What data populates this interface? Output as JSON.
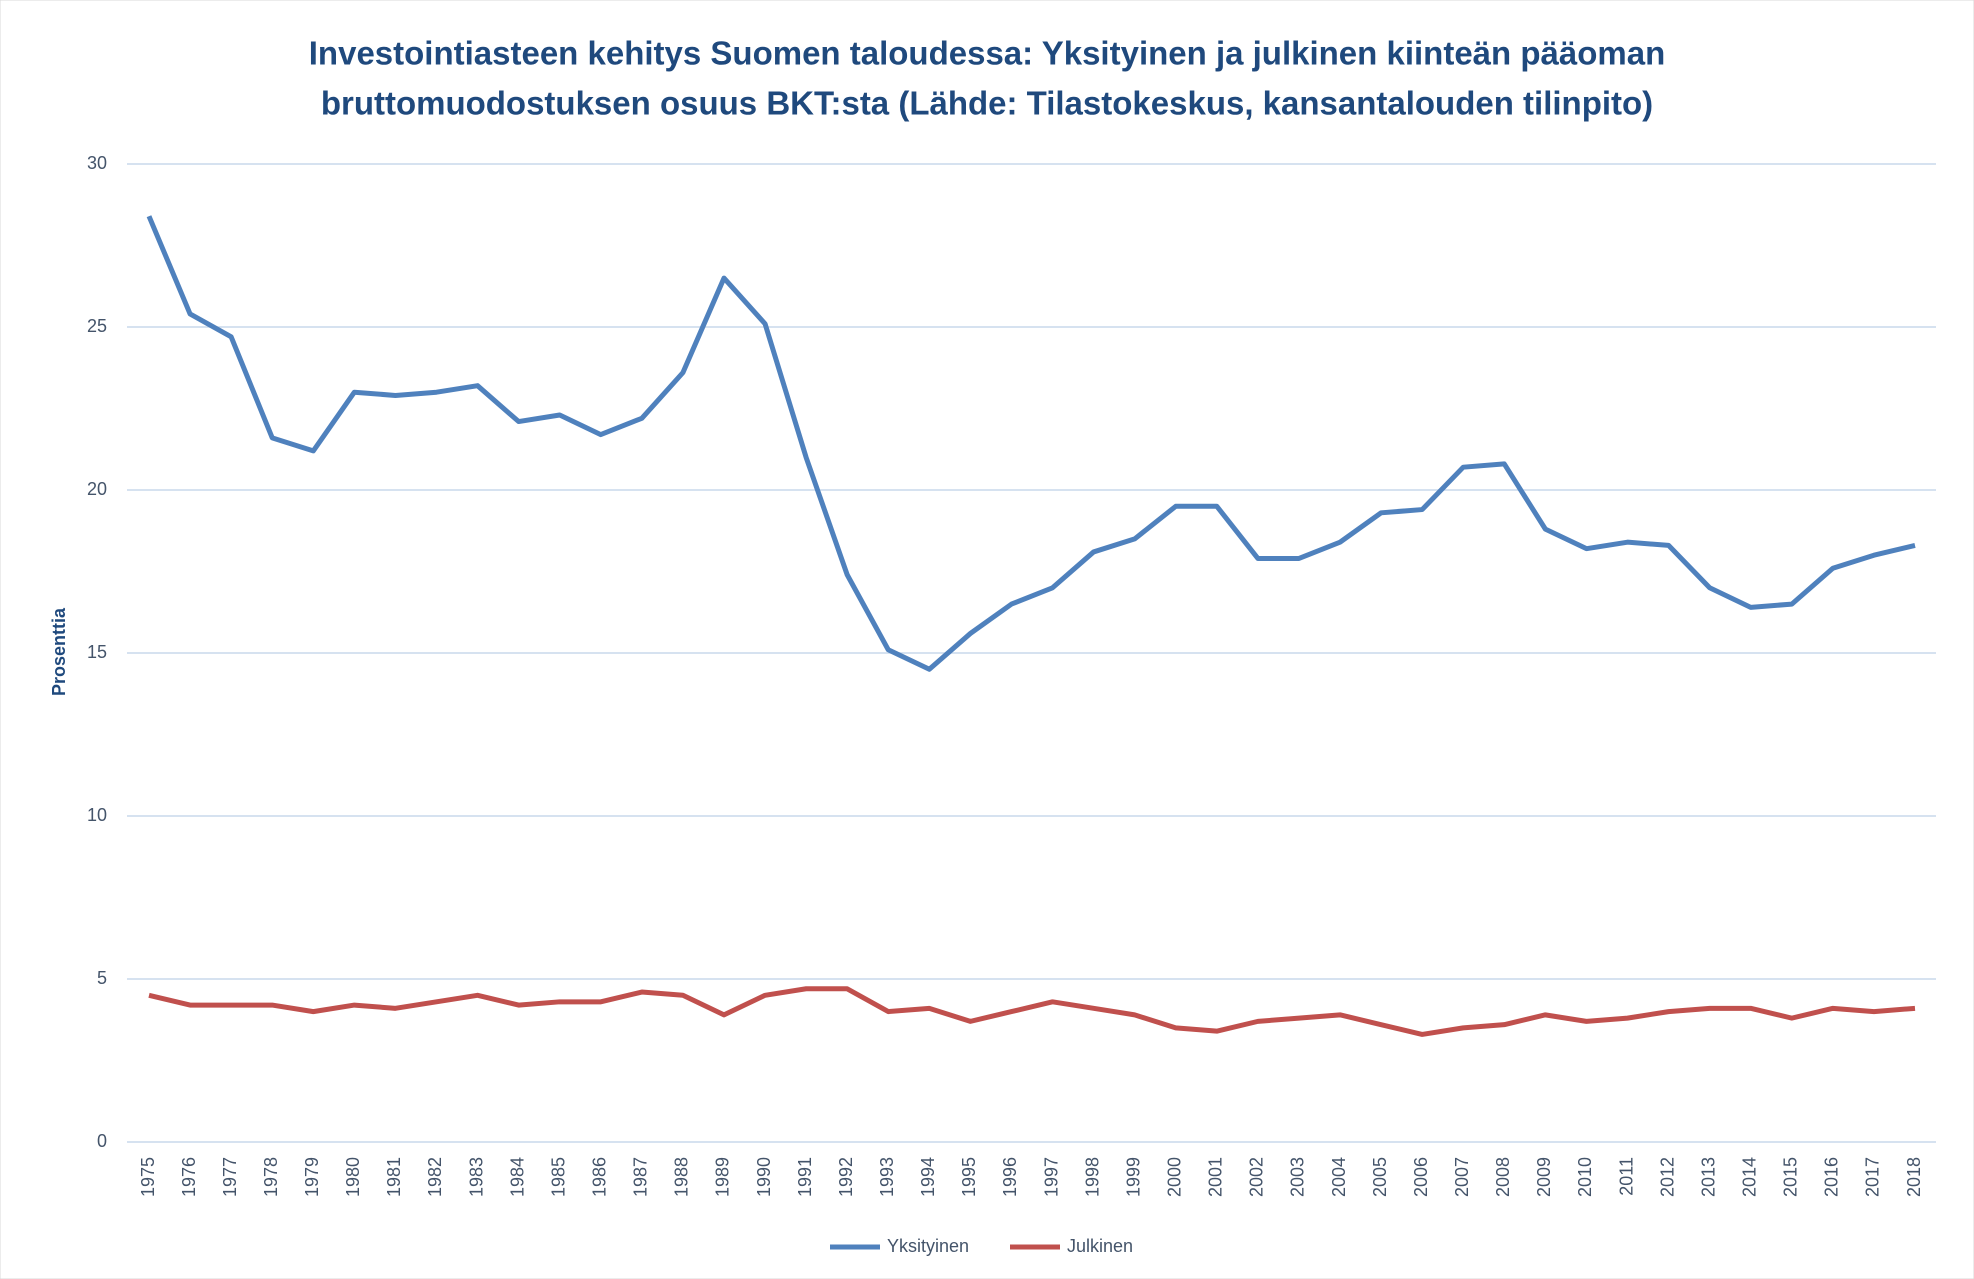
{
  "chart_data": {
    "type": "line",
    "title": [
      "Investointiasteen kehitys Suomen taloudessa: Yksityinen ja julkinen kiinteän pääoman",
      "bruttomuodostuksen osuus BKT:sta (Lähde: Tilastokeskus, kansantalouden tilinpito)"
    ],
    "y_label": "Prosenttia",
    "categories": [
      "1975",
      "1976",
      "1977",
      "1978",
      "1979",
      "1980",
      "1981",
      "1982",
      "1983",
      "1984",
      "1985",
      "1986",
      "1987",
      "1988",
      "1989",
      "1990",
      "1991",
      "1992",
      "1993",
      "1994",
      "1995",
      "1996",
      "1997",
      "1998",
      "1999",
      "2000",
      "2001",
      "2002",
      "2003",
      "2004",
      "2005",
      "2006",
      "2007",
      "2008",
      "2009",
      "2010",
      "2011",
      "2012",
      "2013",
      "2014",
      "2015",
      "2016",
      "2017",
      "2018"
    ],
    "series": [
      {
        "name": "Yksityinen",
        "color": "#4f81bd",
        "values": [
          28.4,
          25.4,
          24.7,
          21.6,
          21.2,
          23.0,
          22.9,
          23.0,
          23.2,
          22.1,
          22.3,
          21.7,
          22.2,
          23.6,
          26.5,
          25.1,
          21.0,
          17.4,
          15.1,
          14.5,
          15.6,
          16.5,
          17.0,
          18.1,
          18.5,
          19.5,
          19.5,
          17.9,
          17.9,
          18.4,
          19.3,
          19.4,
          20.7,
          20.8,
          18.8,
          18.2,
          18.4,
          18.3,
          17.0,
          16.4,
          16.5,
          17.6,
          18.0,
          18.3
        ]
      },
      {
        "name": "Julkinen",
        "color": "#c0504d",
        "values": [
          4.5,
          4.2,
          4.2,
          4.2,
          4.0,
          4.2,
          4.1,
          4.3,
          4.5,
          4.2,
          4.3,
          4.3,
          4.6,
          4.5,
          3.9,
          4.5,
          4.7,
          4.7,
          4.0,
          4.1,
          3.7,
          4.0,
          4.3,
          4.1,
          3.9,
          3.5,
          3.4,
          3.7,
          3.8,
          3.9,
          3.6,
          3.3,
          3.5,
          3.6,
          3.9,
          3.7,
          3.8,
          4.0,
          4.1,
          4.1,
          3.8,
          4.1,
          4.0,
          4.1
        ]
      }
    ],
    "ylim": [
      0,
      30
    ],
    "yticks": [
      0,
      5,
      10,
      15,
      20,
      25,
      30
    ],
    "grid": true,
    "legend": "bottom"
  }
}
